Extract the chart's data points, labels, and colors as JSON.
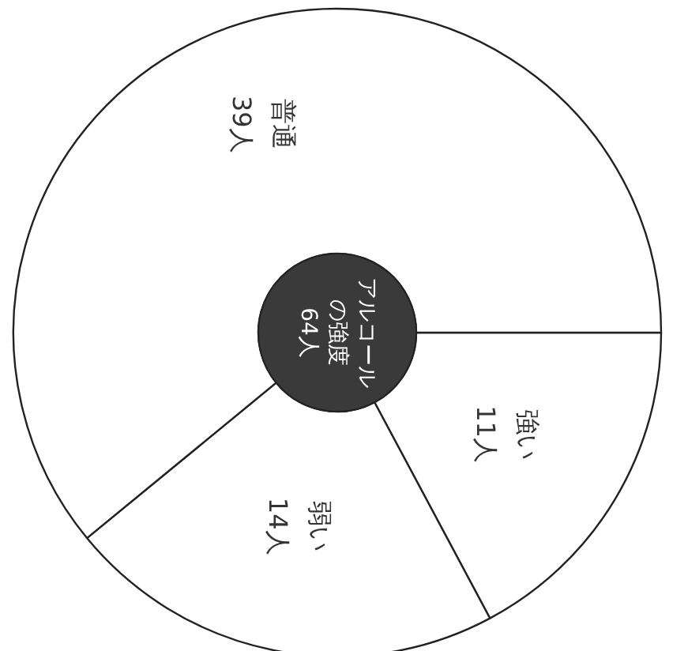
{
  "chart_data": {
    "type": "donut",
    "title": "アルコールの強度",
    "annotations": [
      "64人"
    ],
    "categories": [
      "強い",
      "弱い",
      "普通"
    ],
    "values": [
      11,
      14,
      39
    ],
    "value_labels": [
      "11人",
      "14人",
      "39人"
    ],
    "colors": [
      "#ffffff",
      "#ffffff",
      "#ffffff"
    ]
  }
}
